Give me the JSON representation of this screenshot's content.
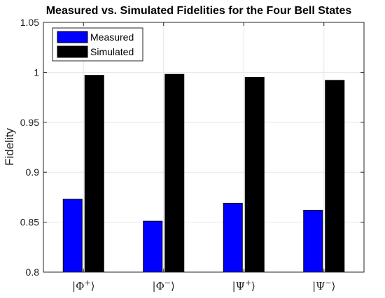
{
  "chart_data": {
    "type": "bar",
    "title": "Measured vs. Simulated Fidelities for the Four Bell States",
    "xlabel": "",
    "ylabel": "Fidelity",
    "ylim": [
      0.8,
      1.05
    ],
    "yticks": [
      "0.8",
      "0.85",
      "0.9",
      "0.95",
      "1",
      "1.05"
    ],
    "categories": [
      {
        "symbol": "Φ",
        "sign": "+"
      },
      {
        "symbol": "Φ",
        "sign": "−"
      },
      {
        "symbol": "Ψ",
        "sign": "+"
      },
      {
        "symbol": "Ψ",
        "sign": "−"
      }
    ],
    "series": [
      {
        "name": "Measured",
        "color": "#0000ff",
        "values": [
          0.873,
          0.851,
          0.869,
          0.862
        ]
      },
      {
        "name": "Simulated",
        "color": "#000000",
        "values": [
          0.997,
          0.998,
          0.995,
          0.992
        ]
      }
    ],
    "grid": true,
    "legend_position": "top-left"
  }
}
